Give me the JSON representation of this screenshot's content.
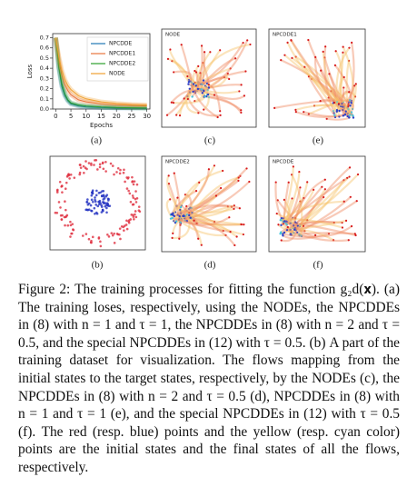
{
  "chart_data": {
    "type": "line",
    "label": "(a)",
    "xlabel": "Epochs",
    "ylabel": "Loss",
    "x": [
      0,
      1,
      2,
      3,
      4,
      5,
      7.5,
      10,
      15,
      20,
      25,
      30
    ],
    "series": [
      {
        "name": "NPCDDE",
        "color": "#1f77b4",
        "values": [
          0.7,
          0.4,
          0.22,
          0.13,
          0.08,
          0.05,
          0.03,
          0.02,
          0.015,
          0.01,
          0.01,
          0.01
        ]
      },
      {
        "name": "NPCDDE1",
        "color": "#e8743b",
        "values": [
          0.7,
          0.48,
          0.33,
          0.24,
          0.18,
          0.14,
          0.09,
          0.07,
          0.05,
          0.04,
          0.035,
          0.03
        ]
      },
      {
        "name": "NPCDDE2",
        "color": "#2ca02c",
        "values": [
          0.7,
          0.42,
          0.25,
          0.15,
          0.09,
          0.06,
          0.04,
          0.03,
          0.02,
          0.015,
          0.012,
          0.01
        ]
      },
      {
        "name": "NODE",
        "color": "#f0a030",
        "values": [
          0.7,
          0.52,
          0.38,
          0.29,
          0.23,
          0.19,
          0.13,
          0.1,
          0.07,
          0.055,
          0.045,
          0.04
        ]
      }
    ],
    "xlim": [
      -1,
      31
    ],
    "ylim": [
      0,
      0.74
    ],
    "xticks": [
      0,
      5,
      10,
      15,
      20,
      25,
      30
    ],
    "yticks": [
      {
        "value": 0,
        "label": "0.0"
      },
      0.1,
      0.2,
      0.3,
      0.4,
      0.5,
      0.6,
      0.7
    ],
    "legend": "upper right"
  },
  "panels": [
    {
      "label": "(c)",
      "title": "NODE"
    },
    {
      "label": "(e)",
      "title": "NPCDDE1"
    },
    {
      "label": "(b)"
    },
    {
      "label": "(d)",
      "title": "NPCDDE2"
    },
    {
      "label": "(f)",
      "title": "NPCDDE"
    }
  ],
  "caption": "Figure 2: The training processes for fitting the function g₂d(𝐱). (a) The training loses, respectively, using the NODEs, the NPCDDEs in (8) with n = 1 and τ = 1, the NPCDDEs in (8) with n = 2 and τ = 0.5, and the special NPCDDEs in (12) with τ = 0.5. (b) A part of the training dataset for visualization. The flows mapping from the initial states to the target states, respectively, by the NODEs (c), the NPCDDEs in (8) with n = 2 and τ = 0.5 (d), NPCDDEs in (8) with n = 1 and τ = 1 (e), and the special NPCDDEs in (12) with τ = 0.5 (f). The red (resp. blue) points and the yellow (resp. cyan color) points are the initial states and the final states of all the flows, respectively."
}
